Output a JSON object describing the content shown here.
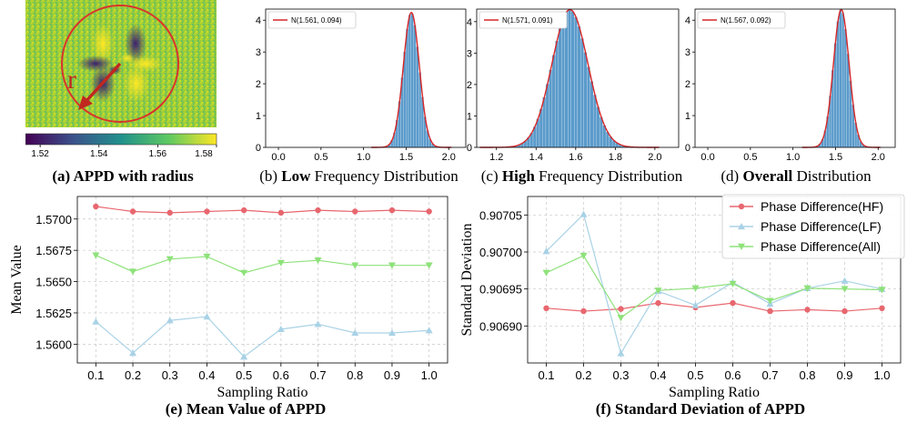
{
  "captions": {
    "a": "(a) APPD with radius",
    "b_prefix": "(b) ",
    "b_bold": "Low",
    "b_suffix": " Frequency Distribution",
    "c_prefix": "(c) ",
    "c_bold": "High",
    "c_suffix": " Frequency Distribution",
    "d_prefix": "(d) ",
    "d_bold": "Overall",
    "d_suffix": " Distribution",
    "e": "(e) Mean Value of APPD",
    "f": "(f) Standard Deviation of APPD"
  },
  "colors": {
    "hf": "#e8676f",
    "lf": "#a9d2e6",
    "all": "#8ee27a",
    "hist": "#5b9bcb",
    "gauss": "#d62728",
    "circle": "#d9342b",
    "grid": "#c8c8c8"
  },
  "panel_a": {
    "radius_label": "r",
    "colorbar_ticks": [
      "1.52",
      "1.54",
      "1.56",
      "1.58"
    ]
  },
  "chart_data": [
    {
      "id": "b",
      "type": "bar",
      "subtype": "histogram",
      "legend": "N(1.561, 0.094)",
      "fit": {
        "mu": 1.561,
        "sigma": 0.094
      },
      "xlim": [
        -0.15,
        2.2
      ],
      "ylim": [
        0,
        4.35
      ],
      "xticks": [
        "0.0",
        "0.5",
        "1.0",
        "1.5",
        "2.0"
      ],
      "xtick_values": [
        0.0,
        0.5,
        1.0,
        1.5,
        2.0
      ],
      "yticks": [
        "0",
        "1",
        "2",
        "3",
        "4"
      ],
      "ytick_values": [
        0,
        1,
        2,
        3,
        4
      ],
      "bin_width": 0.03
    },
    {
      "id": "c",
      "type": "bar",
      "subtype": "histogram",
      "legend": "N(1.571, 0.091)",
      "fit": {
        "mu": 1.571,
        "sigma": 0.091
      },
      "xlim": [
        1.1,
        2.12
      ],
      "ylim": [
        0,
        4.4
      ],
      "xticks": [
        "1.2",
        "1.4",
        "1.6",
        "1.8",
        "2.0"
      ],
      "xtick_values": [
        1.2,
        1.4,
        1.6,
        1.8,
        2.0
      ],
      "yticks": [
        "0",
        "1",
        "2",
        "3",
        "4"
      ],
      "ytick_values": [
        0,
        1,
        2,
        3,
        4
      ],
      "bin_width": 0.016
    },
    {
      "id": "d",
      "type": "bar",
      "subtype": "histogram",
      "legend": "N(1.567, 0.092)",
      "fit": {
        "mu": 1.567,
        "sigma": 0.092
      },
      "xlim": [
        -0.15,
        2.2
      ],
      "ylim": [
        0,
        4.35
      ],
      "xticks": [
        "0.0",
        "0.5",
        "1.0",
        "1.5",
        "2.0"
      ],
      "xtick_values": [
        0.0,
        0.5,
        1.0,
        1.5,
        2.0
      ],
      "yticks": [
        "0",
        "1",
        "2",
        "3",
        "4"
      ],
      "ytick_values": [
        0,
        1,
        2,
        3,
        4
      ],
      "bin_width": 0.03
    },
    {
      "id": "e",
      "type": "line",
      "xlabel": "Sampling Ratio",
      "ylabel": "Mean Value",
      "x": [
        0.1,
        0.2,
        0.3,
        0.4,
        0.5,
        0.6,
        0.7,
        0.8,
        0.9,
        1.0
      ],
      "xticks": [
        "0.1",
        "0.2",
        "0.3",
        "0.4",
        "0.5",
        "0.6",
        "0.7",
        "0.8",
        "0.9",
        "1.0"
      ],
      "ylim": [
        1.5585,
        1.5718
      ],
      "yticks": [
        "1.5600",
        "1.5625",
        "1.5650",
        "1.5675",
        "1.5700"
      ],
      "ytick_values": [
        1.56,
        1.5625,
        1.565,
        1.5675,
        1.57
      ],
      "grid": true,
      "series": [
        {
          "key": "hf",
          "values": [
            1.571,
            1.5706,
            1.5705,
            1.5706,
            1.5707,
            1.5705,
            1.5707,
            1.5706,
            1.5707,
            1.5706
          ],
          "marker": "circle"
        },
        {
          "key": "lf",
          "values": [
            1.5618,
            1.5593,
            1.5619,
            1.5622,
            1.559,
            1.5612,
            1.5616,
            1.5609,
            1.5609,
            1.5611
          ],
          "marker": "triangle-up"
        },
        {
          "key": "all",
          "values": [
            1.5671,
            1.5658,
            1.5668,
            1.567,
            1.5657,
            1.5665,
            1.5667,
            1.5663,
            1.5663,
            1.5663
          ],
          "marker": "triangle-down"
        }
      ]
    },
    {
      "id": "f",
      "type": "line",
      "xlabel": "Sampling Ratio",
      "ylabel": "Standard Deviation",
      "x": [
        0.1,
        0.2,
        0.3,
        0.4,
        0.5,
        0.6,
        0.7,
        0.8,
        0.9,
        1.0
      ],
      "xticks": [
        "0.1",
        "0.2",
        "0.3",
        "0.4",
        "0.5",
        "0.6",
        "0.7",
        "0.8",
        "0.9",
        "1.0"
      ],
      "ylim": [
        0.90685,
        0.907075
      ],
      "yticks": [
        "0.90690",
        "0.90695",
        "0.90700",
        "0.90705"
      ],
      "ytick_values": [
        0.9069,
        0.90695,
        0.907,
        0.90705
      ],
      "grid": true,
      "legend_position": "top-right",
      "series": [
        {
          "key": "hf",
          "name": "Phase Difference(HF)",
          "values": [
            0.906924,
            0.90692,
            0.906923,
            0.906931,
            0.906925,
            0.906931,
            0.90692,
            0.906922,
            0.90692,
            0.906924
          ],
          "marker": "circle"
        },
        {
          "key": "lf",
          "name": "Phase Difference(LF)",
          "values": [
            0.907001,
            0.907051,
            0.906863,
            0.906947,
            0.906928,
            0.906959,
            0.90693,
            0.906951,
            0.906961,
            0.90695
          ],
          "marker": "triangle-up"
        },
        {
          "key": "all",
          "name": "Phase Difference(All)",
          "values": [
            0.906972,
            0.906995,
            0.906911,
            0.906948,
            0.906951,
            0.906957,
            0.906934,
            0.906951,
            0.90695,
            0.906949
          ],
          "marker": "triangle-down"
        }
      ]
    }
  ]
}
